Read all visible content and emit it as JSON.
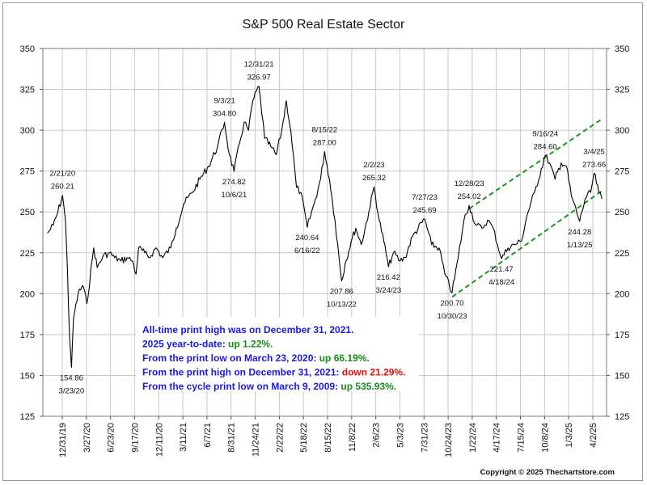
{
  "chart_data": {
    "type": "line",
    "title": "S&P 500 Real Estate Sector",
    "ylim": [
      125,
      350
    ],
    "y_ticks": [
      125,
      150,
      175,
      200,
      225,
      250,
      275,
      300,
      325,
      350
    ],
    "y_tick_labels": [
      "125",
      "150",
      "175",
      "200",
      "225",
      "250",
      "275",
      "300",
      "325",
      "350"
    ],
    "x_tick_labels": [
      "12/31/19",
      "3/27/20",
      "6/23/20",
      "9/17/20",
      "12/11/20",
      "3/11/21",
      "6/7/21",
      "8/31/21",
      "11/24/21",
      "2/22/22",
      "5/18/22",
      "8/15/22",
      "11/8/22",
      "2/6/23",
      "5/3/23",
      "7/31/23",
      "10/24/23",
      "1/22/24",
      "4/17/24",
      "7/15/24",
      "10/8/24",
      "1/3/25",
      "4/2/25"
    ],
    "grid": true,
    "series": [
      {
        "points": [
          [
            "2019-12-31",
            237
          ],
          [
            "2020-01-20",
            242
          ],
          [
            "2020-02-05",
            250
          ],
          [
            "2020-02-21",
            260.21
          ],
          [
            "2020-03-02",
            245
          ],
          [
            "2020-03-09",
            215
          ],
          [
            "2020-03-16",
            175
          ],
          [
            "2020-03-23",
            154.86
          ],
          [
            "2020-03-30",
            185
          ],
          [
            "2020-04-15",
            200
          ],
          [
            "2020-05-01",
            205
          ],
          [
            "2020-05-15",
            194
          ],
          [
            "2020-06-08",
            228
          ],
          [
            "2020-06-20",
            216
          ],
          [
            "2020-07-10",
            223
          ],
          [
            "2020-08-01",
            225
          ],
          [
            "2020-08-20",
            222
          ],
          [
            "2020-09-10",
            220
          ],
          [
            "2020-10-01",
            222
          ],
          [
            "2020-10-20",
            220
          ],
          [
            "2020-11-01",
            212
          ],
          [
            "2020-11-10",
            228
          ],
          [
            "2020-12-01",
            225
          ],
          [
            "2020-12-15",
            222
          ],
          [
            "2021-01-10",
            228
          ],
          [
            "2021-02-01",
            222
          ],
          [
            "2021-03-01",
            228
          ],
          [
            "2021-03-20",
            240
          ],
          [
            "2021-04-15",
            255
          ],
          [
            "2021-05-15",
            262
          ],
          [
            "2021-06-10",
            270
          ],
          [
            "2021-07-10",
            278
          ],
          [
            "2021-08-10",
            290
          ],
          [
            "2021-09-03",
            304.8
          ],
          [
            "2021-09-20",
            285
          ],
          [
            "2021-10-06",
            274.82
          ],
          [
            "2021-10-25",
            292
          ],
          [
            "2021-11-10",
            305
          ],
          [
            "2021-11-25",
            300
          ],
          [
            "2021-12-10",
            318
          ],
          [
            "2021-12-31",
            326.97
          ],
          [
            "2022-01-20",
            295
          ],
          [
            "2022-02-10",
            290
          ],
          [
            "2022-03-01",
            285
          ],
          [
            "2022-03-20",
            300
          ],
          [
            "2022-04-05",
            318
          ],
          [
            "2022-04-20",
            300
          ],
          [
            "2022-05-10",
            265
          ],
          [
            "2022-05-25",
            262
          ],
          [
            "2022-06-16",
            240.64
          ],
          [
            "2022-07-10",
            255
          ],
          [
            "2022-08-01",
            270
          ],
          [
            "2022-08-15",
            287.0
          ],
          [
            "2022-09-01",
            270
          ],
          [
            "2022-09-20",
            245
          ],
          [
            "2022-10-13",
            207.86
          ],
          [
            "2022-10-25",
            218
          ],
          [
            "2022-11-15",
            232
          ],
          [
            "2022-12-01",
            240
          ],
          [
            "2022-12-20",
            230
          ],
          [
            "2023-01-15",
            250
          ],
          [
            "2023-02-02",
            265.32
          ],
          [
            "2023-02-20",
            245
          ],
          [
            "2023-03-08",
            232
          ],
          [
            "2023-03-24",
            216.42
          ],
          [
            "2023-04-10",
            225
          ],
          [
            "2023-05-03",
            220
          ],
          [
            "2023-05-20",
            222
          ],
          [
            "2023-06-15",
            235
          ],
          [
            "2023-07-27",
            245.69
          ],
          [
            "2023-08-20",
            230
          ],
          [
            "2023-09-15",
            228
          ],
          [
            "2023-10-05",
            212
          ],
          [
            "2023-10-30",
            200.7
          ],
          [
            "2023-11-20",
            222
          ],
          [
            "2023-12-10",
            245
          ],
          [
            "2023-12-28",
            254.02
          ],
          [
            "2024-01-20",
            242
          ],
          [
            "2024-02-10",
            240
          ],
          [
            "2024-03-01",
            245
          ],
          [
            "2024-03-20",
            240
          ],
          [
            "2024-04-18",
            221.47
          ],
          [
            "2024-05-10",
            228
          ],
          [
            "2024-06-01",
            230
          ],
          [
            "2024-06-25",
            232
          ],
          [
            "2024-07-15",
            248
          ],
          [
            "2024-08-10",
            262
          ],
          [
            "2024-09-16",
            284.6
          ],
          [
            "2024-10-01",
            280
          ],
          [
            "2024-10-20",
            270
          ],
          [
            "2024-11-10",
            280
          ],
          [
            "2024-11-28",
            278
          ],
          [
            "2024-12-15",
            260
          ],
          [
            "2025-01-13",
            244.28
          ],
          [
            "2025-02-01",
            258
          ],
          [
            "2025-02-20",
            262
          ],
          [
            "2025-03-04",
            273.66
          ],
          [
            "2025-03-20",
            262
          ],
          [
            "2025-03-31",
            258
          ]
        ]
      }
    ],
    "trend_channel": {
      "upper": [
        [
          "2023-12-28",
          252
        ],
        [
          "2025-04-01",
          307
        ]
      ],
      "lower": [
        [
          "2023-10-30",
          198
        ],
        [
          "2025-04-01",
          263
        ]
      ]
    },
    "annotations": [
      {
        "date": "2020-02-21",
        "value": 260.21,
        "label_date": "2/21/20",
        "label_value": "260.21",
        "position": "above"
      },
      {
        "date": "2020-03-23",
        "value": 154.86,
        "label_date": "3/23/20",
        "label_value": "154.86",
        "position": "below"
      },
      {
        "date": "2021-09-03",
        "value": 304.8,
        "label_date": "9/3/21",
        "label_value": "304.80",
        "position": "above"
      },
      {
        "date": "2021-10-06",
        "value": 274.82,
        "label_date": "10/6/21",
        "label_value": "274.82",
        "position": "below"
      },
      {
        "date": "2021-12-31",
        "value": 326.97,
        "label_date": "12/31/21",
        "label_value": "326.97",
        "position": "above"
      },
      {
        "date": "2022-06-16",
        "value": 240.64,
        "label_date": "6/16/22",
        "label_value": "240.64",
        "position": "below"
      },
      {
        "date": "2022-08-15",
        "value": 287.0,
        "label_date": "8/15/22",
        "label_value": "287.00",
        "position": "above"
      },
      {
        "date": "2022-10-13",
        "value": 207.86,
        "label_date": "10/13/22",
        "label_value": "207.86",
        "position": "below"
      },
      {
        "date": "2023-02-02",
        "value": 265.32,
        "label_date": "2/2/23",
        "label_value": "265.32",
        "position": "above"
      },
      {
        "date": "2023-03-24",
        "value": 216.42,
        "label_date": "3/24/23",
        "label_value": "216.42",
        "position": "below"
      },
      {
        "date": "2023-07-27",
        "value": 245.69,
        "label_date": "7/27/23",
        "label_value": "245.69",
        "position": "above"
      },
      {
        "date": "2023-10-30",
        "value": 200.7,
        "label_date": "10/30/23",
        "label_value": "200.70",
        "position": "below"
      },
      {
        "date": "2023-12-28",
        "value": 254.02,
        "label_date": "12/28/23",
        "label_value": "254.02",
        "position": "above"
      },
      {
        "date": "2024-04-18",
        "value": 221.47,
        "label_date": "4/18/24",
        "label_value": "221.47",
        "position": "below"
      },
      {
        "date": "2024-09-16",
        "value": 284.6,
        "label_date": "9/16/24",
        "label_value": "284.60",
        "position": "above"
      },
      {
        "date": "2025-01-13",
        "value": 244.28,
        "label_date": "1/13/25",
        "label_value": "244.28",
        "position": "below"
      },
      {
        "date": "2025-03-04",
        "value": 273.66,
        "label_date": "3/4/25",
        "label_value": "273.66",
        "position": "above"
      }
    ],
    "info_box": {
      "lines": [
        {
          "parts": [
            {
              "text": "All-time print high was on December 31, 2021.",
              "color": "#1a1adc"
            }
          ]
        },
        {
          "parts": [
            {
              "text": "2025 year-to-date: ",
              "color": "#1a1adc"
            },
            {
              "text": "up 1.22%.",
              "color": "#1a8a1a"
            }
          ]
        },
        {
          "parts": [
            {
              "text": "From the print low on March 23, 2020:  ",
              "color": "#1a1adc"
            },
            {
              "text": "up 66.19%.",
              "color": "#1a8a1a"
            }
          ]
        },
        {
          "parts": [
            {
              "text": "From the print high on December 31, 2021:  ",
              "color": "#1a1adc"
            },
            {
              "text": "down 21.29%.",
              "color": "#e01010"
            }
          ]
        },
        {
          "parts": [
            {
              "text": "From the cycle print low on March 9, 2009:  ",
              "color": "#1a1adc"
            },
            {
              "text": "up 535.93%.",
              "color": "#1a8a1a"
            }
          ]
        }
      ]
    },
    "copyright": "Copyright © 2025 Thechartstore.com",
    "colors": {
      "line": "#000000",
      "channel": "#1a9a1a",
      "grid": "#c8c8c8"
    }
  }
}
